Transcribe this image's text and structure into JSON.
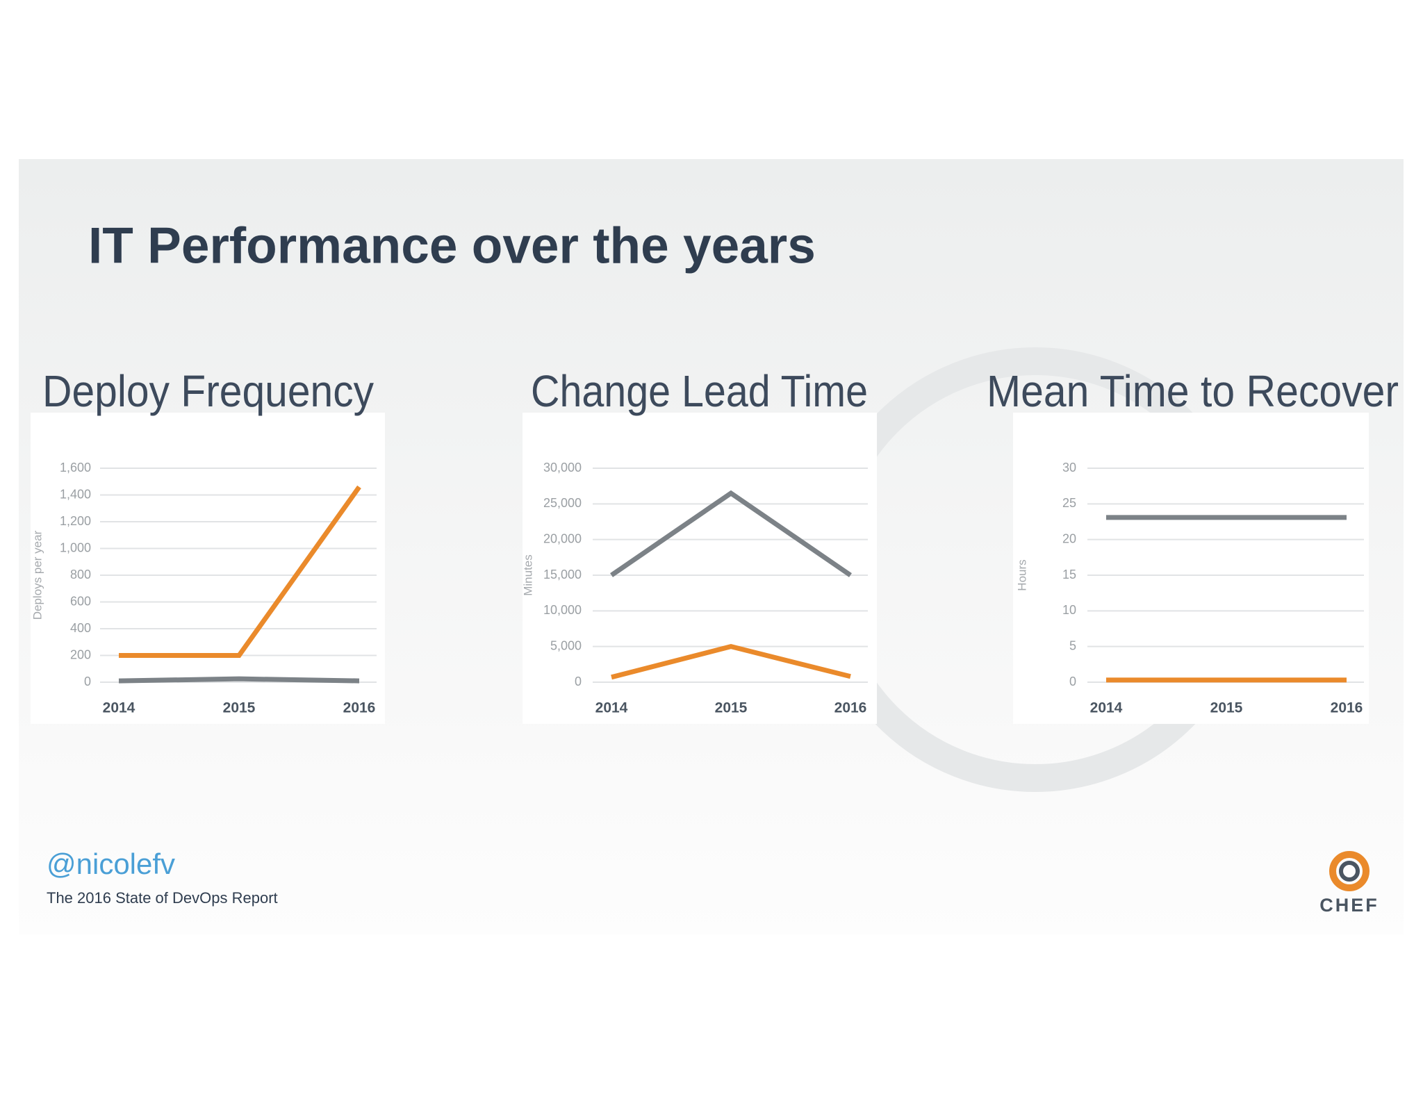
{
  "title": "IT Performance over the years",
  "chart_data": [
    {
      "type": "line",
      "title": "Deploy Frequency",
      "y_label": "Deploys per year",
      "categories": [
        "2014",
        "2015",
        "2016"
      ],
      "series": [
        {
          "color": "#ea8a2b",
          "values": [
            200,
            200,
            1460
          ]
        },
        {
          "color": "#7c8287",
          "values": [
            10,
            25,
            10
          ]
        }
      ],
      "ylim": [
        0,
        1600
      ],
      "yticks": [
        0,
        200,
        400,
        600,
        800,
        {
          "value": 1000,
          "label": "1,000"
        },
        {
          "value": 1200,
          "label": "1,200"
        },
        {
          "value": 1400,
          "label": "1,400"
        },
        {
          "value": 1600,
          "label": "1,600"
        }
      ],
      "grid": true
    },
    {
      "type": "line",
      "title": "Change Lead Time",
      "y_label": "Minutes",
      "categories": [
        "2014",
        "2015",
        "2016"
      ],
      "series": [
        {
          "color": "#7c8287",
          "values": [
            15000,
            26500,
            15000
          ]
        },
        {
          "color": "#ea8a2b",
          "values": [
            700,
            5000,
            800
          ]
        }
      ],
      "ylim": [
        0,
        30000
      ],
      "yticks": [
        0,
        {
          "value": 5000,
          "label": "5,000"
        },
        {
          "value": 10000,
          "label": "10,000"
        },
        {
          "value": 15000,
          "label": "15,000"
        },
        {
          "value": 20000,
          "label": "20,000"
        },
        {
          "value": 25000,
          "label": "25,000"
        },
        {
          "value": 30000,
          "label": "30,000"
        }
      ],
      "grid": true
    },
    {
      "type": "line",
      "title": "Mean Time to Recover",
      "y_label": "Hours",
      "categories": [
        "2014",
        "2015",
        "2016"
      ],
      "series": [
        {
          "color": "#7c8287",
          "values": [
            23.1,
            23.1,
            23.1
          ]
        },
        {
          "color": "#ea8a2b",
          "values": [
            0.3,
            0.3,
            0.3
          ]
        }
      ],
      "ylim": [
        0,
        30
      ],
      "yticks": [
        0,
        5,
        10,
        15,
        20,
        25,
        30
      ],
      "grid": true
    }
  ],
  "footer": {
    "handle": "@nicolefv",
    "source": "The 2016 State of DevOps Report"
  },
  "logo": "CHEF"
}
